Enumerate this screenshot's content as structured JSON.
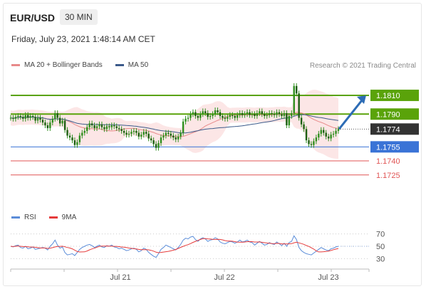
{
  "header": {
    "symbol": "EUR/USD",
    "timeframe": "30 MIN",
    "timestamp": "Friday, July 23, 2021 1:48:14 AM CET",
    "credit": "Research © 2021 Trading Central"
  },
  "legend": {
    "ma20_label": "MA 20 + Bollinger Bands",
    "ma50_label": "MA 50",
    "rsi_label": "RSI",
    "rsi_ma_label": "9MA"
  },
  "colors": {
    "green_level": "#5aa30a",
    "blue_level": "#3a73d6",
    "red_level": "#e05555",
    "candle": "#2f8f1e",
    "bollinger_fill": "#fbe0e0",
    "ma20": "#e88a8a",
    "ma50": "#3b5a8a",
    "rsi": "#5b8dd9",
    "rsi_ma": "#e53b3b",
    "arrow": "#2d6cb5",
    "last_price": "#333333"
  },
  "chart_data": {
    "type": "candlestick",
    "y_range": [
      1.1718,
      1.1832
    ],
    "x_ticks": [
      "Jul 21",
      "Jul 22",
      "Jul 23"
    ],
    "levels": [
      {
        "value": 1.181,
        "label": "1.1810",
        "kind": "resistance"
      },
      {
        "value": 1.179,
        "label": "1.1790",
        "kind": "resistance"
      },
      {
        "value": 1.1774,
        "label": "1.1774",
        "kind": "last_price"
      },
      {
        "value": 1.1755,
        "label": "1.1755",
        "kind": "pivot"
      },
      {
        "value": 1.174,
        "label": "1.1740",
        "kind": "support"
      },
      {
        "value": 1.1725,
        "label": "1.1725",
        "kind": "support"
      }
    ],
    "close": [
      1.1786,
      1.1785,
      1.1787,
      1.1788,
      1.1787,
      1.1785,
      1.1789,
      1.1786,
      1.1788,
      1.1787,
      1.1783,
      1.1786,
      1.1784,
      1.1781,
      1.1778,
      1.1775,
      1.1781,
      1.1785,
      1.1791,
      1.1786,
      1.178,
      1.1783,
      1.1773,
      1.1767,
      1.1765,
      1.1762,
      1.1757,
      1.176,
      1.1767,
      1.177,
      1.1772,
      1.1776,
      1.178,
      1.1778,
      1.1775,
      1.1777,
      1.1779,
      1.1776,
      1.1774,
      1.1777,
      1.1776,
      1.1778,
      1.1777,
      1.1775,
      1.1774,
      1.1772,
      1.177,
      1.1768,
      1.1769,
      1.1771,
      1.1772,
      1.177,
      1.1766,
      1.1768,
      1.1771,
      1.1769,
      1.1764,
      1.1762,
      1.1758,
      1.1754,
      1.1759,
      1.1765,
      1.1767,
      1.177,
      1.1769,
      1.1767,
      1.1765,
      1.1763,
      1.1766,
      1.177,
      1.1782,
      1.1785,
      1.1786,
      1.179,
      1.1792,
      1.1788,
      1.1786,
      1.179,
      1.1793,
      1.1791,
      1.1787,
      1.1788,
      1.179,
      1.1794,
      1.1792,
      1.1788,
      1.1786,
      1.1785,
      1.1787,
      1.1789,
      1.1788,
      1.1786,
      1.1789,
      1.1791,
      1.1789,
      1.179,
      1.1792,
      1.1789,
      1.179,
      1.1788,
      1.1791,
      1.1793,
      1.179,
      1.1788,
      1.1789,
      1.1791,
      1.179,
      1.1789,
      1.1792,
      1.179,
      1.1788,
      1.1791,
      1.1778,
      1.1788,
      1.1791,
      1.182,
      1.1812,
      1.1786,
      1.1779,
      1.1774,
      1.1762,
      1.1758,
      1.1757,
      1.1761,
      1.1765,
      1.1769,
      1.1773,
      1.177,
      1.1766,
      1.1764,
      1.1768,
      1.1769,
      1.1772,
      1.1774
    ],
    "rsi_range": [
      20,
      80
    ],
    "rsi_levels": [
      70,
      50,
      30
    ],
    "rsi": [
      50,
      49,
      51,
      52,
      48,
      47,
      50,
      46,
      47,
      49,
      45,
      46,
      47,
      48,
      47,
      44,
      50,
      54,
      60,
      52,
      47,
      49,
      40,
      36,
      37,
      38,
      35,
      40,
      45,
      48,
      50,
      52,
      53,
      51,
      48,
      50,
      52,
      49,
      48,
      51,
      50,
      52,
      49,
      48,
      46,
      47,
      45,
      43,
      44,
      46,
      47,
      45,
      41,
      43,
      47,
      45,
      40,
      37,
      34,
      32,
      38,
      45,
      48,
      52,
      50,
      48,
      46,
      44,
      48,
      53,
      60,
      63,
      62,
      65,
      66,
      61,
      58,
      62,
      64,
      62,
      58,
      60,
      61,
      64,
      62,
      57,
      55,
      54,
      56,
      58,
      57,
      55,
      57,
      60,
      57,
      58,
      60,
      57,
      56,
      52,
      55,
      58,
      55,
      52,
      53,
      56,
      54,
      53,
      57,
      54,
      51,
      55,
      50,
      56,
      58,
      67,
      61,
      48,
      43,
      40,
      38,
      37,
      36,
      39,
      42,
      45,
      48,
      46,
      44,
      43,
      46,
      47,
      49,
      50
    ]
  }
}
